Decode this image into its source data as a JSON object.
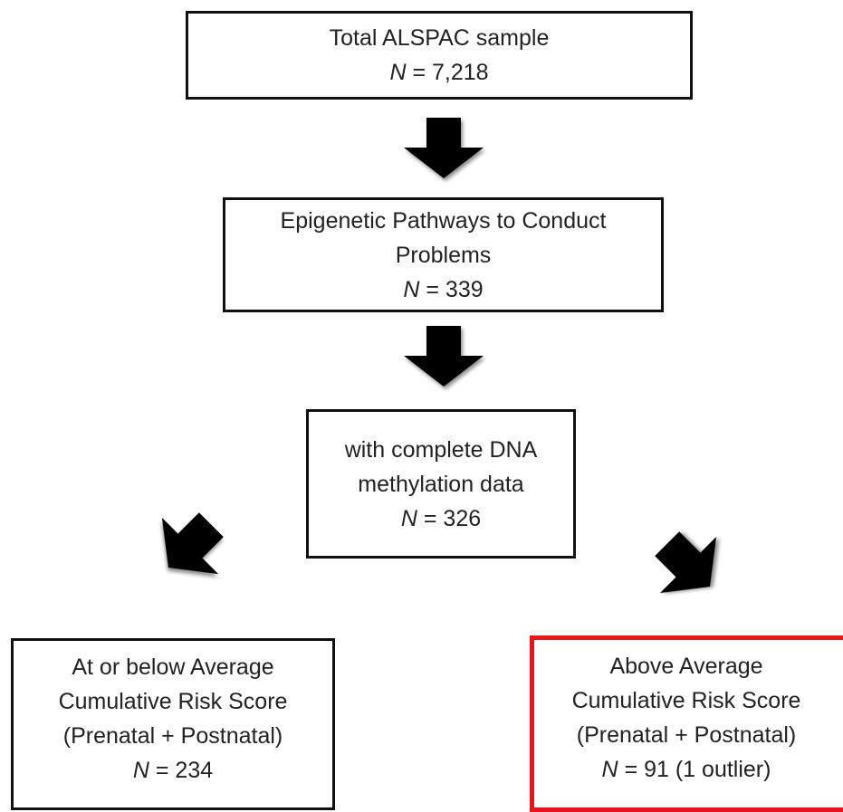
{
  "nodes": [
    {
      "lines": [
        "Total ALSPAC sample"
      ],
      "count_symbol": "N",
      "count": "= 7,218"
    },
    {
      "lines": [
        "Epigenetic Pathways to Conduct",
        "Problems"
      ],
      "count_symbol": "N",
      "count": "= 339"
    },
    {
      "lines": [
        "with complete DNA",
        "methylation data"
      ],
      "count_symbol": "N",
      "count": "= 326"
    },
    {
      "lines": [
        "At or below Average",
        "Cumulative Risk Score",
        "(Prenatal + Postnatal)"
      ],
      "count_symbol": "N",
      "count": "= 234"
    },
    {
      "lines": [
        "Above Average",
        "Cumulative Risk Score",
        "(Prenatal + Postnatal)"
      ],
      "count_symbol": "N",
      "count": "= 91 (1 outlier)"
    }
  ]
}
